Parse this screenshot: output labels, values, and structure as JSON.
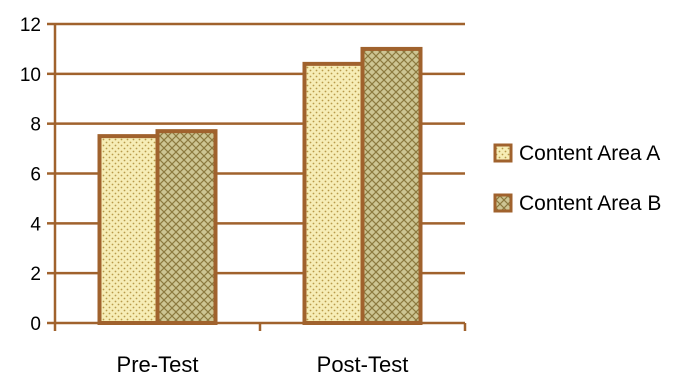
{
  "chart_data": {
    "type": "bar",
    "categories": [
      "Pre-Test",
      "Post-Test"
    ],
    "series": [
      {
        "name": "Content Area A",
        "values": [
          7.5,
          10.4
        ]
      },
      {
        "name": "Content Area B",
        "values": [
          7.7,
          11.0
        ]
      }
    ],
    "ylim": [
      0,
      12
    ],
    "yticks": [
      0,
      2,
      4,
      6,
      8,
      10,
      12
    ],
    "grid": true,
    "legend": "right",
    "colors": {
      "axis": "#a0622d",
      "bar_outline": "#a0622d",
      "series_a_fill": "#f6edb6",
      "series_b_fill": "#cdc593",
      "pattern_dot": "#b89a4a",
      "pattern_hatch": "#8c7a3f"
    }
  }
}
